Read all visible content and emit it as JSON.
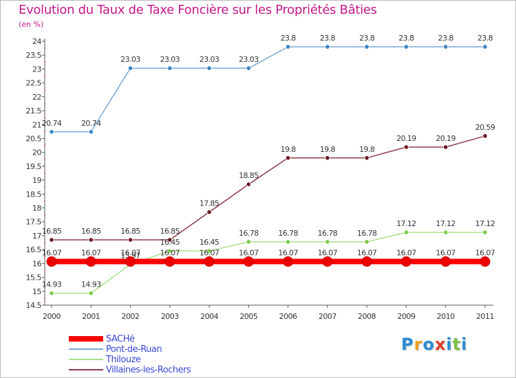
{
  "header": {
    "title": "Evolution du Taux de Taxe Foncière sur les Propriétés Bâties",
    "unit": "(en %)"
  },
  "chart_data": {
    "type": "line",
    "title": "Evolution du Taux de Taxe Foncière sur les Propriétés Bâties",
    "ylabel": "(en %)",
    "xlabel": "",
    "x": [
      "2000",
      "2001",
      "2002",
      "2003",
      "2004",
      "2005",
      "2006",
      "2007",
      "2008",
      "2009",
      "2010",
      "2011"
    ],
    "ylim": [
      14.5,
      24
    ],
    "yticks": [
      "14.5",
      "15",
      "15.5",
      "16",
      "16.5",
      "17",
      "17.5",
      "18",
      "18.5",
      "19",
      "19.5",
      "20",
      "20.5",
      "21",
      "21.5",
      "22",
      "22.5",
      "23",
      "23.5",
      "24"
    ],
    "grid": false,
    "legend_position": "bottom-left",
    "series": [
      {
        "name": "Pont-de-Ruan",
        "color": "#7aa8d6",
        "marker_color": "#3b83c4",
        "values": [
          20.74,
          20.74,
          23.03,
          23.03,
          23.03,
          23.03,
          23.8,
          23.8,
          23.8,
          23.8,
          23.8,
          23.8
        ],
        "labels": [
          "20.74",
          "20.74",
          "23.03",
          "23.03",
          "23.03",
          "23.03",
          "23.8",
          "23.8",
          "23.8",
          "23.8",
          "23.8",
          "23.8"
        ]
      },
      {
        "name": "Villaines-les-Rochers",
        "color": "#8b3a4a",
        "marker_color": "#6b1a23",
        "values": [
          16.85,
          16.85,
          16.85,
          16.85,
          17.85,
          18.85,
          19.8,
          19.8,
          19.8,
          20.19,
          20.19,
          20.59
        ],
        "labels": [
          "16.85",
          "16.85",
          "16.85",
          "16.85",
          "17.85",
          "18.85",
          "19.8",
          "19.8",
          "19.8",
          "20.19",
          "20.19",
          "20.59"
        ]
      },
      {
        "name": "Thilouze",
        "color": "#a8e08a",
        "marker_color": "#7ccc4a",
        "values": [
          14.93,
          14.93,
          15.97,
          16.45,
          16.45,
          16.78,
          16.78,
          16.78,
          16.78,
          17.12,
          17.12,
          17.12
        ],
        "labels": [
          "14.93",
          "14.93",
          "15.97",
          "16.45",
          "16.45",
          "16.78",
          "16.78",
          "16.78",
          "16.78",
          "17.12",
          "17.12",
          "17.12"
        ]
      },
      {
        "name": "SACHé",
        "color": "#ff0000",
        "marker_color": "#ee0000",
        "values": [
          16.07,
          16.07,
          16.07,
          16.07,
          16.07,
          16.07,
          16.07,
          16.07,
          16.07,
          16.07,
          16.07,
          16.07
        ],
        "labels": [
          "16.07",
          "16.07",
          "16.07",
          "16.07",
          "16.07",
          "16.07",
          "16.07",
          "16.07",
          "16.07",
          "16.07",
          "16.07",
          "16.07"
        ],
        "highlight": true
      }
    ]
  },
  "legend": {
    "items": [
      {
        "label": "SACHé",
        "color": "#ff0000",
        "thick": true
      },
      {
        "label": "Pont-de-Ruan",
        "color": "#7aa8d6",
        "thick": false
      },
      {
        "label": "Thilouze",
        "color": "#a8e08a",
        "thick": false
      },
      {
        "label": "Villaines-les-Rochers",
        "color": "#8b3a4a",
        "thick": false
      }
    ]
  },
  "logo": {
    "letters": [
      "P",
      "r",
      "o",
      "x",
      "i",
      "t",
      "i"
    ],
    "colors": [
      "#2a8bd6",
      "#f0a01e",
      "#2a8bd6",
      "#e23c2a",
      "#2a8bd6",
      "#7ac043",
      "#2a8bd6"
    ]
  }
}
